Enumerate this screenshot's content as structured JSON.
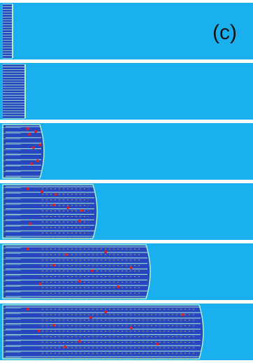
{
  "figure": {
    "panel_label": "(c)",
    "colors": {
      "background_phase": "#1ab0f0",
      "solid_phase": "#2846c0",
      "interface": "#a8f0d0",
      "solute_peak": "#f0c020",
      "defect": "#e02020"
    },
    "snapshots": [
      {
        "id": "stage-1",
        "growth_front_fraction": 0.05,
        "has_defects": false
      },
      {
        "id": "stage-2",
        "growth_front_fraction": 0.1,
        "has_defects": false
      },
      {
        "id": "stage-3",
        "growth_front_fraction": 0.18,
        "has_defects": true
      },
      {
        "id": "stage-4",
        "growth_front_fraction": 0.39,
        "has_defects": true
      },
      {
        "id": "stage-5",
        "growth_front_fraction": 0.6,
        "has_defects": true
      },
      {
        "id": "stage-6",
        "growth_front_fraction": 0.81,
        "has_defects": true
      }
    ]
  }
}
